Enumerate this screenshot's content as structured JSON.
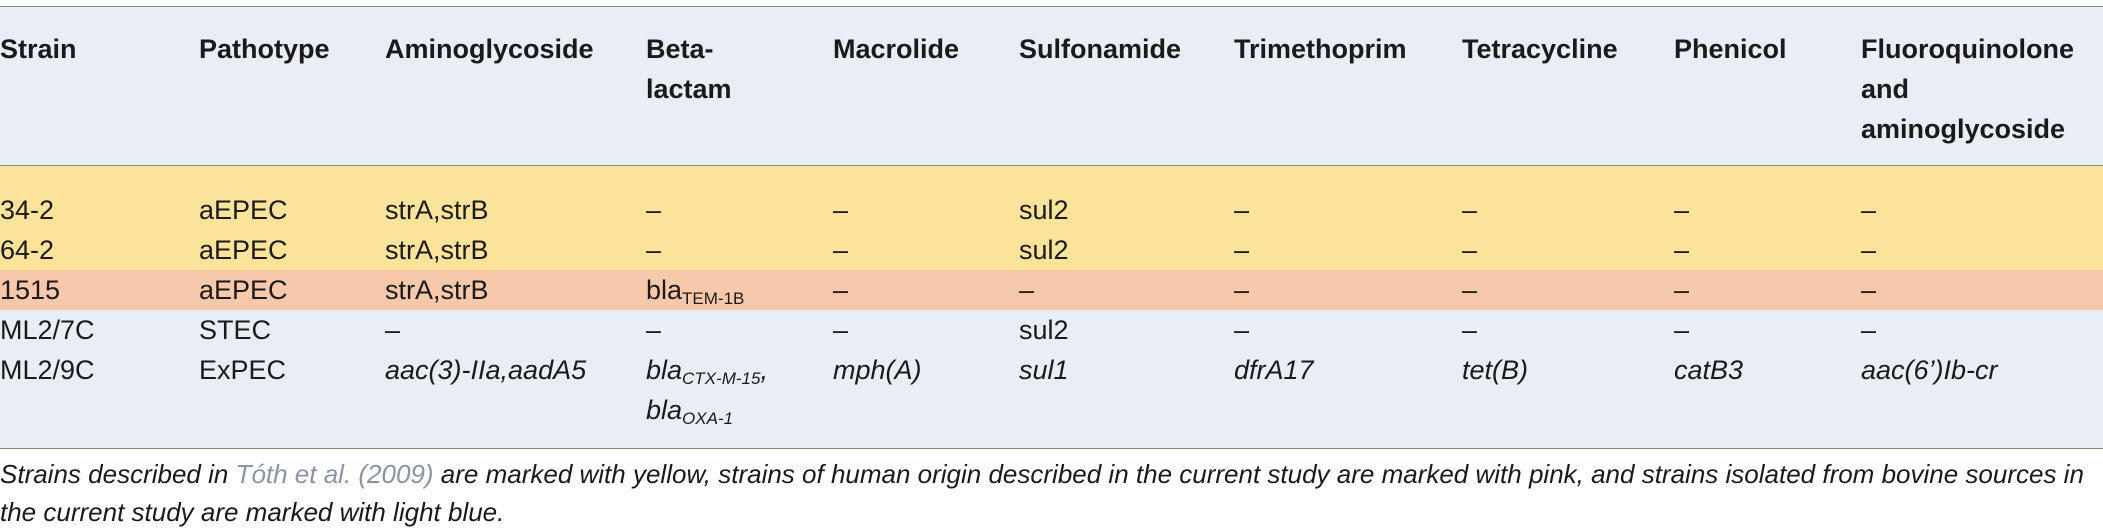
{
  "headers": [
    [
      "Strain"
    ],
    [
      "Pathotype"
    ],
    [
      "Aminoglycoside"
    ],
    [
      "Beta-",
      "lactam"
    ],
    [
      "Macrolide"
    ],
    [
      "Sulfonamide"
    ],
    [
      "Trimethoprim"
    ],
    [
      "Tetracycline"
    ],
    [
      "Phenicol"
    ],
    [
      "Fluoroquinolone",
      "and",
      "aminoglycoside"
    ]
  ],
  "rows": [
    {
      "strain": "34-2",
      "pathotype": "aEPEC",
      "aminoglycoside": "strA,strB",
      "betalactam": "–",
      "macrolide": "–",
      "sulfonamide": "sul2",
      "trimethoprim": "–",
      "tetracycline": "–",
      "phenicol": "–",
      "fluoro": "–"
    },
    {
      "strain": "64-2",
      "pathotype": "aEPEC",
      "aminoglycoside": "strA,strB",
      "betalactam": "–",
      "macrolide": "–",
      "sulfonamide": "sul2",
      "trimethoprim": "–",
      "tetracycline": "–",
      "phenicol": "–",
      "fluoro": "–"
    },
    {
      "strain": "1515",
      "pathotype": "aEPEC",
      "aminoglycoside": "strA,strB",
      "betalactam_base": "bla",
      "betalactam_sub": "TEM-1B",
      "macrolide": "–",
      "sulfonamide": "–",
      "trimethoprim": "–",
      "tetracycline": "–",
      "phenicol": "–",
      "fluoro": "–"
    },
    {
      "strain": "ML2/7C",
      "pathotype": "STEC",
      "aminoglycoside": "–",
      "betalactam": "–",
      "macrolide": "–",
      "sulfonamide": "sul2",
      "trimethoprim": "–",
      "tetracycline": "–",
      "phenicol": "–",
      "fluoro": "–"
    },
    {
      "strain": "ML2/9C",
      "pathotype": "ExPEC",
      "aminoglycoside": "aac(3)-IIa,aadA5",
      "betalactam_base1": "bla",
      "betalactam_sub1": "CTX-M-15",
      "betalactam_sep": ",",
      "betalactam_base2": "bla",
      "betalactam_sub2": "OXA-1",
      "macrolide": "mph(A)",
      "sulfonamide": "sul1",
      "trimethoprim": "dfrA17",
      "tetracycline": "tet(B)",
      "phenicol": "catB3",
      "fluoro": "aac(6’)Ib-cr"
    }
  ],
  "caption": {
    "before": "Strains described in ",
    "ref": "Tóth et al. (2009)",
    "after": " are marked with yellow, strains of human origin described in the current study are marked with pink, and strains isolated from bovine sources in the current study are marked with light blue."
  },
  "colors": {
    "yellow": "#fbe49a",
    "pink": "#f8c8aa",
    "light_blue": "#e9eef6",
    "rule": "#7f9078",
    "reference_link": "#8a93a8"
  }
}
